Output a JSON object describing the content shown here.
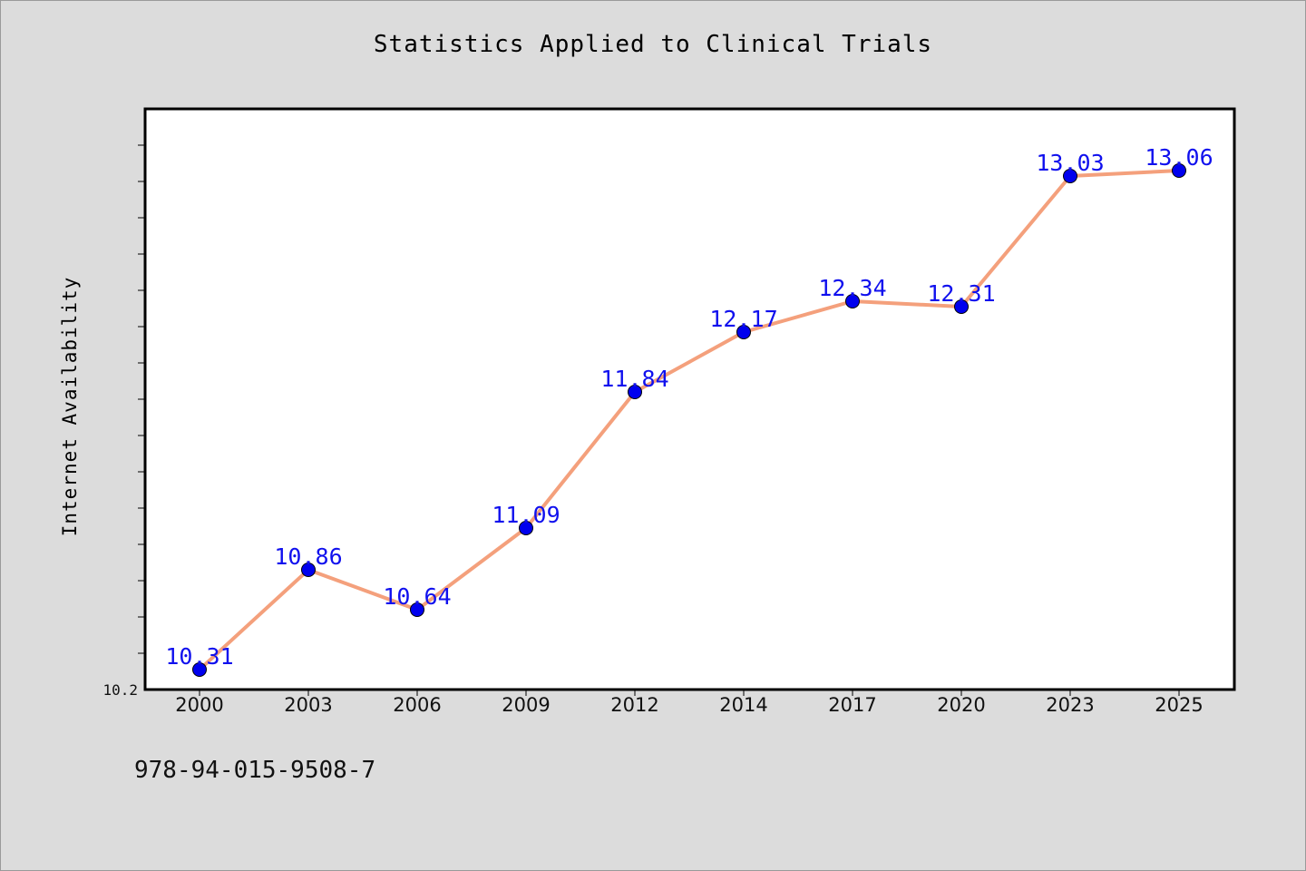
{
  "chart_data": {
    "type": "line",
    "title": "Statistics Applied to Clinical Trials",
    "xlabel": "",
    "ylabel": "Internet Availability",
    "categories": [
      "2000",
      "2003",
      "2006",
      "2009",
      "2012",
      "2014",
      "2017",
      "2020",
      "2023",
      "2025"
    ],
    "series": [
      {
        "values": [
          10.31,
          10.86,
          10.64,
          11.09,
          11.84,
          12.17,
          12.34,
          12.31,
          13.03,
          13.06
        ],
        "line_color": "#f4a07c",
        "marker_color": "#0000ee"
      }
    ],
    "ylim": [
      10.2,
      13.4
    ],
    "ytick_labels": [
      "10.2"
    ],
    "data_labels": true,
    "grid": false,
    "legend": "none"
  },
  "footnote": "978-94-015-9508-7",
  "colors": {
    "background": "#dcdcdc",
    "plot_background": "#ffffff",
    "data_label": "#1010ee"
  }
}
